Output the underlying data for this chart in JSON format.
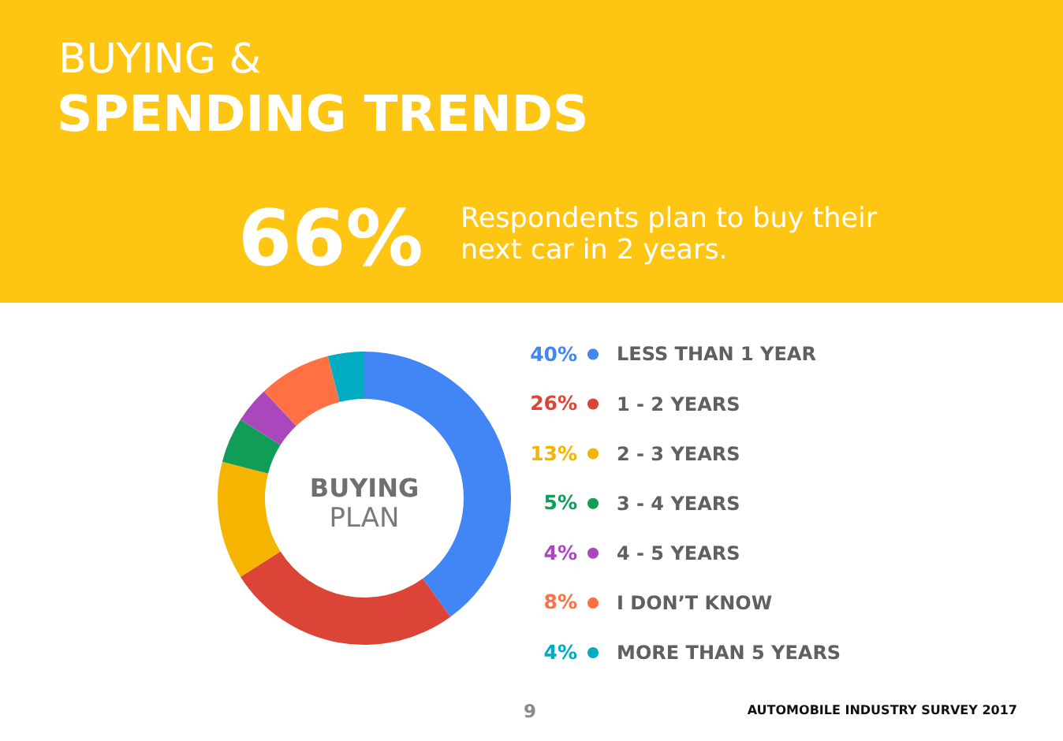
{
  "chart_data": {
    "type": "donut",
    "title": "BUYING &",
    "subtitle": "SPENDING TRENDS",
    "categories": [
      "LESS THAN 1 YEAR",
      "1 - 2 YEARS",
      "2 - 3 YEARS",
      "3 - 4 YEARS",
      "4 - 5 YEARS",
      "I DON’T KNOW",
      "MORE THAN 5 YEARS"
    ],
    "values": [
      40,
      26,
      13,
      5,
      4,
      8,
      4
    ],
    "value_labels": [
      "40%",
      "26%",
      "13%",
      "5%",
      "4%",
      "8%",
      "4%"
    ],
    "colors": [
      "#4285f4",
      "#db4437",
      "#f4b400",
      "#0f9d58",
      "#ab47bc",
      "#ff7043",
      "#00acc1"
    ],
    "legend": "right",
    "annotations": [
      "66%",
      "Respondents plan to buy their next car in 2 years.",
      "BUYING",
      "PLAN",
      "9",
      "AUTOMOBILE INDUSTRY SURVEY 2017"
    ]
  }
}
